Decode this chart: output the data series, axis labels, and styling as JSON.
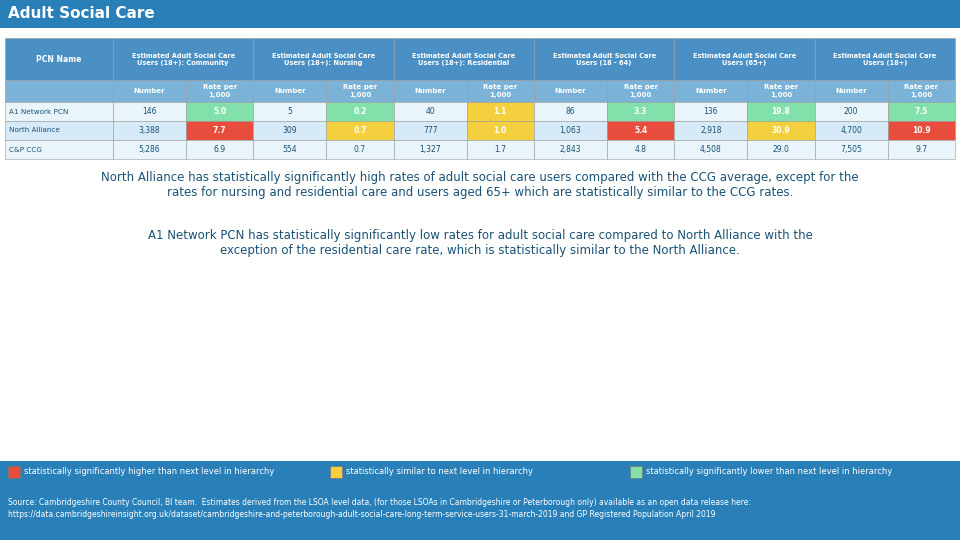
{
  "title": "Adult Social Care",
  "group_headers": [
    "Estimated Adult Social Care\nUsers (18+): Community",
    "Estimated Adult Social Care\nUsers (18+): Nursing",
    "Estimated Adult Social Care\nUsers (18+): Residential",
    "Estimated Adult Social Care\nUsers (18 - 64)",
    "Estimated Adult Social Care\nUsers (65+)",
    "Estimated Adult Social Care\nUsers (18+)"
  ],
  "rows": [
    {
      "name": "A1 Network PCN",
      "values": [
        "146",
        "5.0",
        "5",
        "0.2",
        "40",
        "1.1",
        "86",
        "3.3",
        "136",
        "19.8",
        "200",
        "7.5"
      ],
      "colors": [
        "",
        "green",
        "",
        "green",
        "",
        "yellow",
        "",
        "green",
        "",
        "green",
        "",
        "green"
      ]
    },
    {
      "name": "North Alliance",
      "values": [
        "3,388",
        "7.7",
        "309",
        "0.7",
        "777",
        "1.0",
        "1,063",
        "5.4",
        "2,918",
        "30.9",
        "4,700",
        "10.9"
      ],
      "colors": [
        "",
        "red",
        "",
        "yellow",
        "",
        "yellow",
        "",
        "red",
        "",
        "yellow",
        "",
        "red"
      ]
    },
    {
      "name": "C&P CCG",
      "values": [
        "5,286",
        "6.9",
        "554",
        "0.7",
        "1,327",
        "1.7",
        "2,843",
        "4.8",
        "4,508",
        "29.0",
        "7,505",
        "9.7"
      ],
      "colors": [
        "",
        "",
        "",
        "",
        "",
        "",
        "",
        "",
        "",
        "",
        "",
        ""
      ]
    }
  ],
  "legend": [
    {
      "color": "#E74C3C",
      "label": "statistically significantly higher than next level in hierarchy"
    },
    {
      "color": "#F4D03F",
      "label": "statistically similar to next level in hierarchy"
    },
    {
      "color": "#82E0AA",
      "label": "statistically significantly lower than next level in hierarchy"
    }
  ],
  "footnote_line1": "Source: Cambridgeshire County Council, BI team.  Estimates derived from the LSOA level data, (for those LSOAs in Cambridgeshire or Peterborough only) available as an open data release here:",
  "footnote_line2": "https://data.cambridgeshireinsight.org.uk/dataset/cambridgeshire-and-peterborough-adult-social-care-long-term-service-users-31-march-2019 and GP Registered Population April 2019",
  "para1": "North Alliance has statistically significantly high rates of adult social care users compared with the CCG average, except for the\nrates for nursing and residential care and users aged 65+ which are statistically similar to the CCG rates.",
  "para2": "A1 Network PCN has statistically significantly low rates for adult social care compared to North Alliance with the\nexception of the residential care rate, which is statistically similar to the North Alliance.",
  "title_bg": "#2980B9",
  "header_bg": "#4A90C4",
  "subheader_bg": "#7BB3D8",
  "row_colors": [
    "#EAF4FB",
    "#D6EAF8",
    "#EAF4FB"
  ],
  "legend_bg": "#2980B9",
  "footnote_bg": "#2980B9",
  "text_color": "#1A5276",
  "white": "#FFFFFF"
}
